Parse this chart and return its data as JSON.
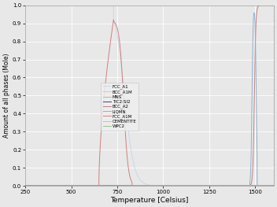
{
  "title": "",
  "xlabel": "Temperature [Celsius]",
  "ylabel": "Amount of all phases (Mole)",
  "xlim": [
    250,
    1600
  ],
  "ylim": [
    0.0,
    1.0
  ],
  "xticks": [
    250,
    500,
    750,
    1000,
    1250,
    1500
  ],
  "yticks": [
    0.0,
    0.1,
    0.2,
    0.3,
    0.4,
    0.5,
    0.6,
    0.7,
    0.8,
    0.9,
    1.0
  ],
  "legend_labels": [
    "FCC_A1",
    "BCC_A1M",
    "MNS",
    "TIC2:SI2",
    "BCC_A2",
    "LIQMN",
    "FCC_A1M",
    "CEMENTITE",
    "WPC2"
  ],
  "colors": {
    "FCC_A1": "#c8d8e8",
    "BCC_A1M": "#e8c0c0",
    "MNS": "#b0b8b0",
    "TIC2_SI2": "#404080",
    "BCC_A2": "#c08080",
    "LIQMN": "#90b0d0",
    "FCC_A1M": "#d08080",
    "CEMENTITE": "#c8c890",
    "WPC2": "#90c890"
  },
  "bg_color": "#e8e8e8",
  "grid_color": "#ffffff",
  "figsize": [
    3.52,
    2.63
  ],
  "dpi": 100
}
